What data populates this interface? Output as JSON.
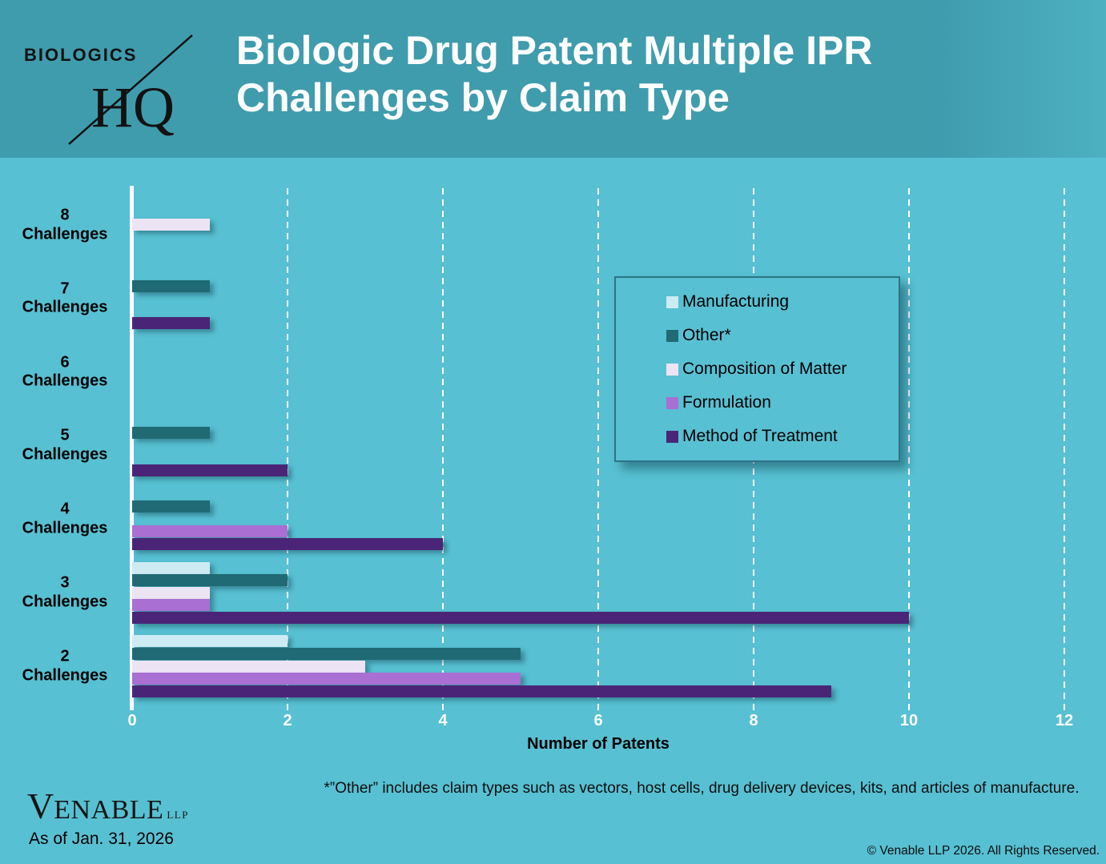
{
  "header": {
    "logo_top": "BIOLOGICS",
    "logo_bottom": "HQ",
    "title_line1": "Biologic Drug Patent Multiple IPR",
    "title_line2": "Challenges by Claim Type"
  },
  "chart_data": {
    "type": "bar",
    "orientation": "horizontal",
    "title": "Biologic Drug Patent Multiple IPR Challenges by Claim Type",
    "xlabel": "Number of Patents",
    "ylabel": "",
    "xlim": [
      0,
      12
    ],
    "xticks": [
      0,
      2,
      4,
      6,
      8,
      10,
      12
    ],
    "grid": "vertical-dashed-white",
    "legend_position": "middle-right",
    "categories": [
      "8 Challenges",
      "7 Challenges",
      "6 Challenges",
      "5 Challenges",
      "4 Challenges",
      "3 Challenges",
      "2 Challenges"
    ],
    "series": [
      {
        "name": "Manufacturing",
        "color": "#cdebf2",
        "values": [
          0,
          0,
          0,
          0,
          0,
          1,
          2
        ]
      },
      {
        "name": "Other*",
        "color": "#206a75",
        "values": [
          0,
          1,
          0,
          1,
          1,
          2,
          5
        ]
      },
      {
        "name": "Composition of Matter",
        "color": "#ece4f5",
        "values": [
          1,
          0,
          0,
          0,
          0,
          1,
          3
        ]
      },
      {
        "name": "Formulation",
        "color": "#a96fd3",
        "values": [
          0,
          0,
          0,
          0,
          2,
          1,
          5
        ]
      },
      {
        "name": "Method of Treatment",
        "color": "#4a2577",
        "values": [
          0,
          1,
          0,
          2,
          4,
          10,
          9
        ]
      }
    ]
  },
  "colors": {
    "page_background": "#57c0d2",
    "header_background": "#3f9cad",
    "title_text": "#ffffff",
    "gridline": "#ffffff",
    "axis_line": "#ffffff",
    "tick_text": "#ffffff",
    "label_text": "#000000"
  },
  "footer": {
    "venable_first": "V",
    "venable_rest": "ENABLE",
    "venable_llp": "LLP",
    "as_of": "As of Jan. 31, 2026",
    "footnote": "*”Other” includes claim types such as vectors, host cells, drug delivery devices, kits, and articles of manufacture.",
    "copyright": "© Venable LLP 2026. All Rights Reserved."
  }
}
